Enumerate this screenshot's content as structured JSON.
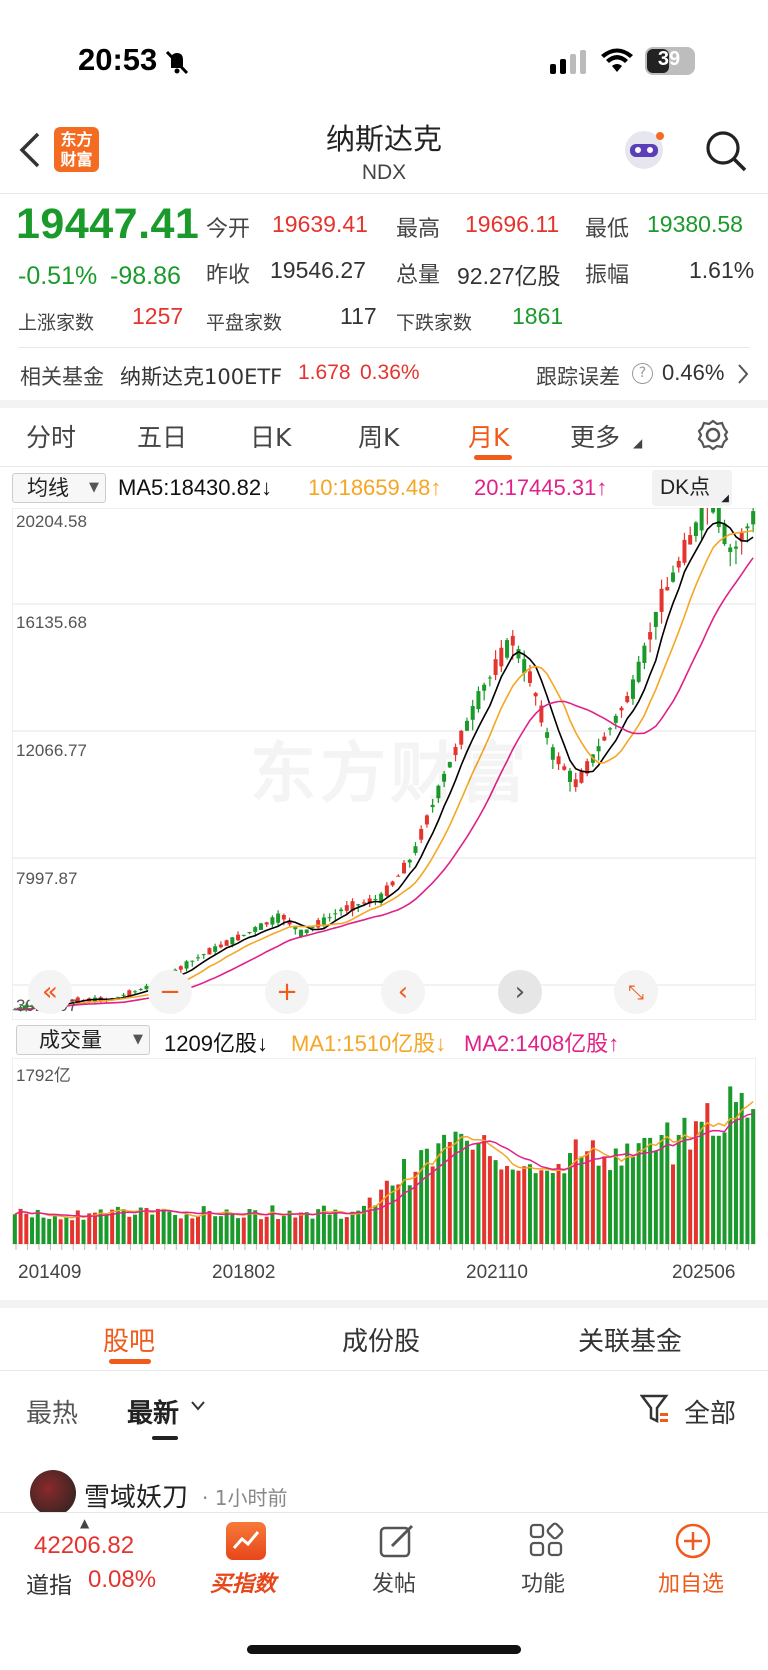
{
  "status": {
    "time": "20:53",
    "battery": "39"
  },
  "header": {
    "logo_line1": "东方",
    "logo_line2": "财富",
    "title": "纳斯达克",
    "subtitle": "NDX"
  },
  "quote": {
    "price": "19447.41",
    "change_pct": "-0.51%",
    "change": "-98.86",
    "open_label": "今开",
    "open": "19639.41",
    "high_label": "最高",
    "high": "19696.11",
    "low_label": "最低",
    "low": "19380.58",
    "prev_label": "昨收",
    "prev": "19546.27",
    "vol_label": "总量",
    "vol": "92.27亿股",
    "amp_label": "振幅",
    "amp": "1.61%",
    "up_label": "上涨家数",
    "up": "1257",
    "flat_label": "平盘家数",
    "flat": "117",
    "down_label": "下跌家数",
    "down": "1861"
  },
  "fund": {
    "label": "相关基金",
    "name": "纳斯达克100ETF",
    "price": "1.678",
    "pct": "0.36%",
    "track_label": "跟踪误差",
    "track": "0.46%"
  },
  "tabs": [
    "分时",
    "五日",
    "日K",
    "周K",
    "月K",
    "更多"
  ],
  "ma": {
    "select": "均线",
    "ma5": "MA5:18430.82↓",
    "ma10": "10:18659.48↑",
    "ma20": "20:17445.31↑",
    "dk": "DK点"
  },
  "price_axis": [
    "20204.58",
    "16135.68",
    "12066.77",
    "7997.87",
    "3928.97"
  ],
  "watermark": "东方财富",
  "volume": {
    "select": "成交量",
    "vol": "1209亿股↓",
    "ma1": "MA1:1510亿股↓",
    "ma2": "MA2:1408亿股↑",
    "max": "1792亿"
  },
  "x_axis": [
    "201409",
    "201802",
    "202110",
    "202506"
  ],
  "colors": {
    "up": "#e5332e",
    "down": "#1a9a2a",
    "accent": "#f05a1a",
    "ma5": "#000000",
    "ma10": "#f5a623",
    "ma20": "#e0218a"
  },
  "bottom_tabs": [
    "股吧",
    "成份股",
    "关联基金"
  ],
  "sub_tabs": {
    "hot": "最热",
    "new": "最新",
    "filter": "全部"
  },
  "post": {
    "user": "雪域妖刀",
    "time": "1小时前"
  },
  "nav": {
    "index_value": "42206.82",
    "index_name": "道指",
    "index_pct": "0.08%",
    "buy": "买指数",
    "post": "发帖",
    "func": "功能",
    "add": "加自选"
  }
}
